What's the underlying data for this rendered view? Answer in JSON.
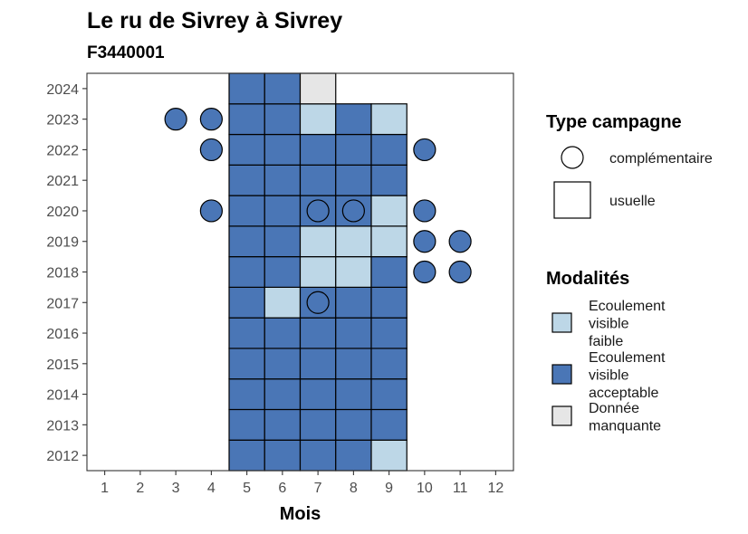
{
  "chart_data": {
    "type": "heatmap",
    "title": "Le ru de Sivrey à Sivrey",
    "subtitle": "F3440001",
    "xlabel": "Mois",
    "ylabel": "",
    "x_ticks": [
      "1",
      "2",
      "3",
      "4",
      "5",
      "6",
      "7",
      "8",
      "9",
      "10",
      "11",
      "12"
    ],
    "y_ticks": [
      "2012",
      "2013",
      "2014",
      "2015",
      "2016",
      "2017",
      "2018",
      "2019",
      "2020",
      "2021",
      "2022",
      "2023",
      "2024"
    ],
    "xlim": [
      0.5,
      12.5
    ],
    "ylim": [
      2011.5,
      2024.5
    ],
    "grid": false,
    "legend_position": "right",
    "colors": {
      "faible": "#bdd7e7",
      "acceptable": "#4a76b6",
      "manquante": "#e6e6e6"
    },
    "cells": [
      {
        "year": 2012,
        "month": 5,
        "modalite": "acceptable"
      },
      {
        "year": 2012,
        "month": 6,
        "modalite": "acceptable"
      },
      {
        "year": 2012,
        "month": 7,
        "modalite": "acceptable"
      },
      {
        "year": 2012,
        "month": 8,
        "modalite": "acceptable"
      },
      {
        "year": 2012,
        "month": 9,
        "modalite": "faible"
      },
      {
        "year": 2013,
        "month": 5,
        "modalite": "acceptable"
      },
      {
        "year": 2013,
        "month": 6,
        "modalite": "acceptable"
      },
      {
        "year": 2013,
        "month": 7,
        "modalite": "acceptable"
      },
      {
        "year": 2013,
        "month": 8,
        "modalite": "acceptable"
      },
      {
        "year": 2013,
        "month": 9,
        "modalite": "acceptable"
      },
      {
        "year": 2014,
        "month": 5,
        "modalite": "acceptable"
      },
      {
        "year": 2014,
        "month": 6,
        "modalite": "acceptable"
      },
      {
        "year": 2014,
        "month": 7,
        "modalite": "acceptable"
      },
      {
        "year": 2014,
        "month": 8,
        "modalite": "acceptable"
      },
      {
        "year": 2014,
        "month": 9,
        "modalite": "acceptable"
      },
      {
        "year": 2015,
        "month": 5,
        "modalite": "acceptable"
      },
      {
        "year": 2015,
        "month": 6,
        "modalite": "acceptable"
      },
      {
        "year": 2015,
        "month": 7,
        "modalite": "acceptable"
      },
      {
        "year": 2015,
        "month": 8,
        "modalite": "acceptable"
      },
      {
        "year": 2015,
        "month": 9,
        "modalite": "acceptable"
      },
      {
        "year": 2016,
        "month": 5,
        "modalite": "acceptable"
      },
      {
        "year": 2016,
        "month": 6,
        "modalite": "acceptable"
      },
      {
        "year": 2016,
        "month": 7,
        "modalite": "acceptable"
      },
      {
        "year": 2016,
        "month": 8,
        "modalite": "acceptable"
      },
      {
        "year": 2016,
        "month": 9,
        "modalite": "acceptable"
      },
      {
        "year": 2017,
        "month": 5,
        "modalite": "acceptable"
      },
      {
        "year": 2017,
        "month": 6,
        "modalite": "faible"
      },
      {
        "year": 2017,
        "month": 7,
        "modalite": "acceptable"
      },
      {
        "year": 2017,
        "month": 8,
        "modalite": "acceptable"
      },
      {
        "year": 2017,
        "month": 9,
        "modalite": "acceptable"
      },
      {
        "year": 2018,
        "month": 5,
        "modalite": "acceptable"
      },
      {
        "year": 2018,
        "month": 6,
        "modalite": "acceptable"
      },
      {
        "year": 2018,
        "month": 7,
        "modalite": "faible"
      },
      {
        "year": 2018,
        "month": 8,
        "modalite": "faible"
      },
      {
        "year": 2018,
        "month": 9,
        "modalite": "acceptable"
      },
      {
        "year": 2019,
        "month": 5,
        "modalite": "acceptable"
      },
      {
        "year": 2019,
        "month": 6,
        "modalite": "acceptable"
      },
      {
        "year": 2019,
        "month": 7,
        "modalite": "faible"
      },
      {
        "year": 2019,
        "month": 8,
        "modalite": "faible"
      },
      {
        "year": 2019,
        "month": 9,
        "modalite": "faible"
      },
      {
        "year": 2020,
        "month": 5,
        "modalite": "acceptable"
      },
      {
        "year": 2020,
        "month": 6,
        "modalite": "acceptable"
      },
      {
        "year": 2020,
        "month": 7,
        "modalite": "acceptable"
      },
      {
        "year": 2020,
        "month": 8,
        "modalite": "acceptable"
      },
      {
        "year": 2020,
        "month": 9,
        "modalite": "faible"
      },
      {
        "year": 2021,
        "month": 5,
        "modalite": "acceptable"
      },
      {
        "year": 2021,
        "month": 6,
        "modalite": "acceptable"
      },
      {
        "year": 2021,
        "month": 7,
        "modalite": "acceptable"
      },
      {
        "year": 2021,
        "month": 8,
        "modalite": "acceptable"
      },
      {
        "year": 2021,
        "month": 9,
        "modalite": "acceptable"
      },
      {
        "year": 2022,
        "month": 5,
        "modalite": "acceptable"
      },
      {
        "year": 2022,
        "month": 6,
        "modalite": "acceptable"
      },
      {
        "year": 2022,
        "month": 7,
        "modalite": "acceptable"
      },
      {
        "year": 2022,
        "month": 8,
        "modalite": "acceptable"
      },
      {
        "year": 2022,
        "month": 9,
        "modalite": "acceptable"
      },
      {
        "year": 2023,
        "month": 5,
        "modalite": "acceptable"
      },
      {
        "year": 2023,
        "month": 6,
        "modalite": "acceptable"
      },
      {
        "year": 2023,
        "month": 7,
        "modalite": "faible"
      },
      {
        "year": 2023,
        "month": 8,
        "modalite": "acceptable"
      },
      {
        "year": 2023,
        "month": 9,
        "modalite": "faible"
      },
      {
        "year": 2024,
        "month": 5,
        "modalite": "acceptable"
      },
      {
        "year": 2024,
        "month": 6,
        "modalite": "acceptable"
      },
      {
        "year": 2024,
        "month": 7,
        "modalite": "manquante"
      }
    ],
    "points": [
      {
        "year": 2023,
        "month": 3,
        "modalite": "acceptable"
      },
      {
        "year": 2023,
        "month": 4,
        "modalite": "acceptable"
      },
      {
        "year": 2022,
        "month": 4,
        "modalite": "acceptable"
      },
      {
        "year": 2022,
        "month": 10,
        "modalite": "acceptable"
      },
      {
        "year": 2020,
        "month": 4,
        "modalite": "acceptable"
      },
      {
        "year": 2020,
        "month": 7,
        "modalite": "acceptable"
      },
      {
        "year": 2020,
        "month": 8,
        "modalite": "acceptable"
      },
      {
        "year": 2020,
        "month": 10,
        "modalite": "acceptable"
      },
      {
        "year": 2019,
        "month": 10,
        "modalite": "acceptable"
      },
      {
        "year": 2019,
        "month": 11,
        "modalite": "acceptable"
      },
      {
        "year": 2018,
        "month": 10,
        "modalite": "acceptable"
      },
      {
        "year": 2018,
        "month": 11,
        "modalite": "acceptable"
      },
      {
        "year": 2017,
        "month": 7,
        "modalite": "acceptable"
      }
    ],
    "legend": {
      "type_title": "Type campagne",
      "type_items": [
        {
          "shape": "circle",
          "label": "complémentaire"
        },
        {
          "shape": "square",
          "label": "usuelle"
        }
      ],
      "modalite_title": "Modalités",
      "modalite_items": [
        {
          "key": "faible",
          "lines": [
            "Ecoulement",
            "visible",
            "faible"
          ]
        },
        {
          "key": "acceptable",
          "lines": [
            "Ecoulement",
            "visible",
            "acceptable"
          ]
        },
        {
          "key": "manquante",
          "lines": [
            "Donnée",
            "manquante"
          ]
        }
      ]
    }
  }
}
